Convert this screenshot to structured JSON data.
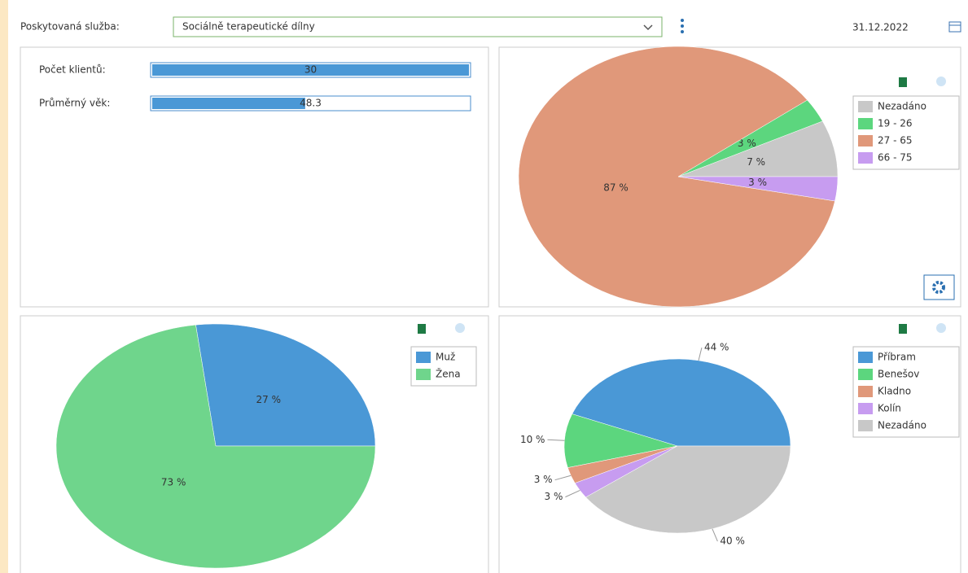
{
  "toolbar": {
    "label": "Poskytovaná služba:",
    "service": "Sociálně terapeutické dílny",
    "date": "31.12.2022"
  },
  "summary": {
    "rows": [
      {
        "label": "Počet klientů:",
        "value": 30,
        "xlim": [
          0,
          30
        ]
      },
      {
        "label": "Průměrný věk:",
        "value": 48.3,
        "xlim": [
          0,
          100
        ]
      }
    ]
  },
  "chart_data": [
    {
      "type": "pie",
      "categories": [
        "Nezadáno",
        "19 - 26",
        "27 - 65",
        "66 - 75"
      ],
      "values": [
        7,
        3,
        87,
        3
      ],
      "value_labels": [
        "7 %",
        "3 %",
        "87 %",
        "3 %"
      ],
      "colors": [
        "#c8c8c8",
        "#5cd67e",
        "#e0987a",
        "#c79cf0"
      ],
      "label_position": "inside"
    },
    {
      "type": "pie",
      "categories": [
        "Muž",
        "Žena"
      ],
      "values": [
        27,
        73
      ],
      "value_labels": [
        "27 %",
        "73 %"
      ],
      "colors": [
        "#4a98d6",
        "#6fd58c"
      ],
      "label_position": "inside"
    },
    {
      "type": "pie",
      "categories": [
        "Příbram",
        "Benešov",
        "Kladno",
        "Kolín",
        "Nezadáno"
      ],
      "values": [
        44,
        10,
        3,
        3,
        40
      ],
      "value_labels": [
        "44 %",
        "10 %",
        "3 %",
        "3 %",
        "40 %"
      ],
      "colors": [
        "#4a98d6",
        "#5cd67e",
        "#e0987a",
        "#c79cf0",
        "#c8c8c8"
      ],
      "label_position": "outside"
    }
  ]
}
